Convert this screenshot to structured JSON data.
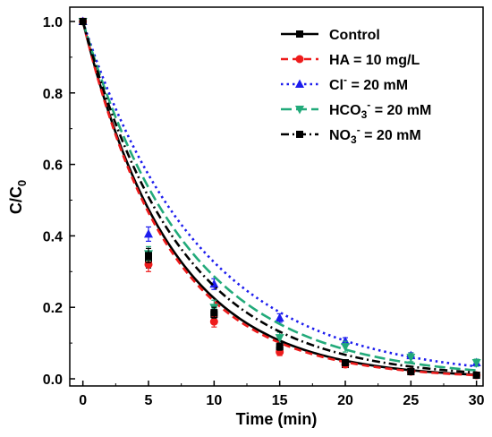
{
  "chart_data": {
    "type": "line",
    "xlabel": "Time (min)",
    "ylabel": {
      "main": "C/C",
      "sub": "0"
    },
    "xlim": [
      -1,
      30.5
    ],
    "ylim": [
      -0.02,
      1.04
    ],
    "xticks": [
      0,
      5,
      10,
      15,
      20,
      25,
      30
    ],
    "yticks": [
      0.0,
      0.2,
      0.4,
      0.6,
      0.8,
      1.0
    ],
    "xtick_labels": [
      "0",
      "5",
      "10",
      "15",
      "20",
      "25",
      "30"
    ],
    "ytick_labels": [
      "0.0",
      "0.2",
      "0.4",
      "0.6",
      "0.8",
      "1.0"
    ],
    "legend_position": "top-right",
    "grid": false,
    "x": [
      0,
      5,
      10,
      15,
      20,
      25,
      30
    ],
    "series": [
      {
        "name": "Control",
        "label_parts": [
          {
            "t": "Control"
          }
        ],
        "color": "#000000",
        "marker": "square",
        "dash": "solid",
        "values": [
          1.0,
          0.33,
          0.18,
          0.08,
          0.04,
          0.02,
          0.01
        ],
        "errors": [
          0,
          0.02,
          0.015,
          0.01,
          0.008,
          0.006,
          0.005
        ],
        "fit_k": 0.149
      },
      {
        "name": "HA = 10 mg/L",
        "label_parts": [
          {
            "t": "HA = 10 mg/L"
          }
        ],
        "color": "#ee1c1c",
        "marker": "circle",
        "dash": "dash",
        "values": [
          1.0,
          0.32,
          0.16,
          0.075,
          0.04,
          0.02,
          0.01
        ],
        "errors": [
          0,
          0.02,
          0.015,
          0.01,
          0.008,
          0.006,
          0.005
        ],
        "fit_k": 0.153
      },
      {
        "name": "Cl- = 20 mM",
        "label_parts": [
          {
            "t": "Cl"
          },
          {
            "t": "-",
            "sup": true
          },
          {
            "t": " = 20 mM"
          }
        ],
        "color": "#1c1cee",
        "marker": "triangle-up",
        "dash": "dot",
        "values": [
          1.0,
          0.405,
          0.265,
          0.17,
          0.105,
          0.065,
          0.045
        ],
        "errors": [
          0,
          0.02,
          0.015,
          0.012,
          0.01,
          0.008,
          0.006
        ],
        "fit_k": 0.112
      },
      {
        "name": "HCO3- = 20 mM",
        "label_parts": [
          {
            "t": "HCO"
          },
          {
            "t": "3",
            "sub": true
          },
          {
            "t": "-",
            "sup": true
          },
          {
            "t": " = 20 mM"
          }
        ],
        "color": "#22aa7a",
        "marker": "triangle-down",
        "dash": "longdash",
        "values": [
          1.0,
          0.35,
          0.2,
          0.115,
          0.09,
          0.06,
          0.045
        ],
        "errors": [
          0,
          0.02,
          0.02,
          0.015,
          0.015,
          0.012,
          0.01
        ],
        "fit_k": 0.125
      },
      {
        "name": "NO3- = 20 mM",
        "label_parts": [
          {
            "t": "NO"
          },
          {
            "t": "3",
            "sub": true
          },
          {
            "t": "-",
            "sup": true
          },
          {
            "t": " = 20 mM"
          }
        ],
        "color": "#000000",
        "marker": "square",
        "dash": "dashdot",
        "values": [
          1.0,
          0.345,
          0.185,
          0.09,
          0.045,
          0.02,
          0.01
        ],
        "errors": [
          0,
          0.02,
          0.015,
          0.01,
          0.008,
          0.006,
          0.005
        ],
        "fit_k": 0.135
      }
    ]
  }
}
